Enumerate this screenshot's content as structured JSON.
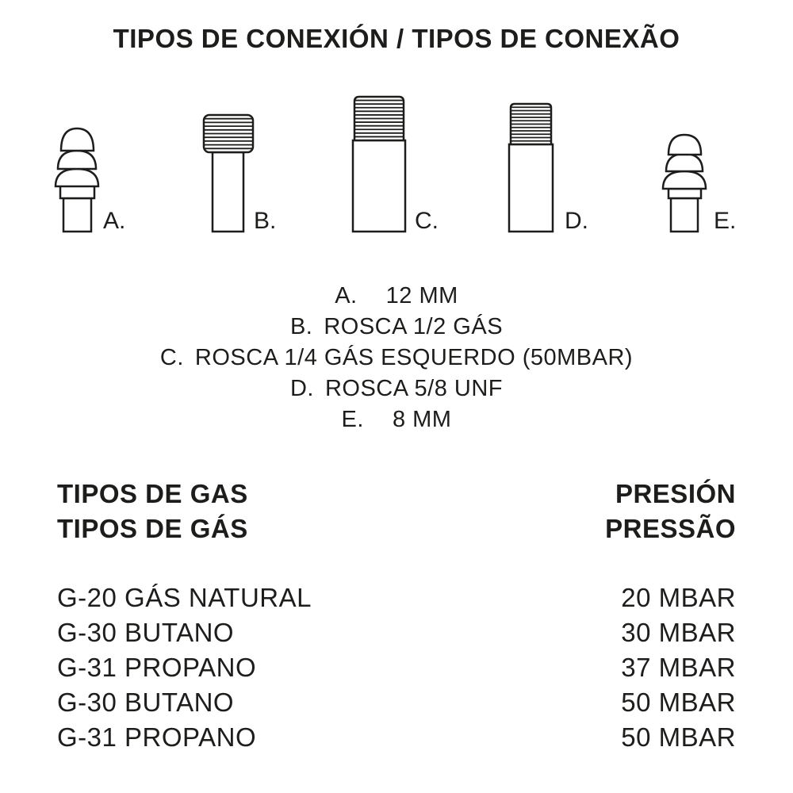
{
  "title": "TIPOS DE CONEXIÓN / TIPOS DE CONEXÃO",
  "connectors": [
    {
      "letter": "A.",
      "text": "12 MM",
      "icon": "hose-barb-12mm-icon"
    },
    {
      "letter": "B.",
      "text": "ROSCA 1/2 GÁS",
      "icon": "thread-half-inch-icon"
    },
    {
      "letter": "C.",
      "text": "ROSCA 1/4 GÁS ESQUERDO (50MBAR)",
      "icon": "thread-quarter-inch-left-icon"
    },
    {
      "letter": "D.",
      "text": "ROSCA 5/8 UNF",
      "icon": "thread-5-8-unf-icon"
    },
    {
      "letter": "E.",
      "text": "8 MM",
      "icon": "hose-barb-8mm-icon"
    }
  ],
  "gas": {
    "header_left": [
      "TIPOS DE GAS",
      "TIPOS DE GÁS"
    ],
    "header_right": [
      "PRESIÓN",
      "PRESSÃO"
    ],
    "rows": [
      {
        "gas": "G-20 GÁS NATURAL",
        "pressure": "20 MBAR"
      },
      {
        "gas": "G-30 BUTANO",
        "pressure": "30 MBAR"
      },
      {
        "gas": "G-31 PROPANO",
        "pressure": "37 MBAR"
      },
      {
        "gas": "G-30 BUTANO",
        "pressure": "50 MBAR"
      },
      {
        "gas": "G-31 PROPANO",
        "pressure": "50 MBAR"
      }
    ]
  }
}
